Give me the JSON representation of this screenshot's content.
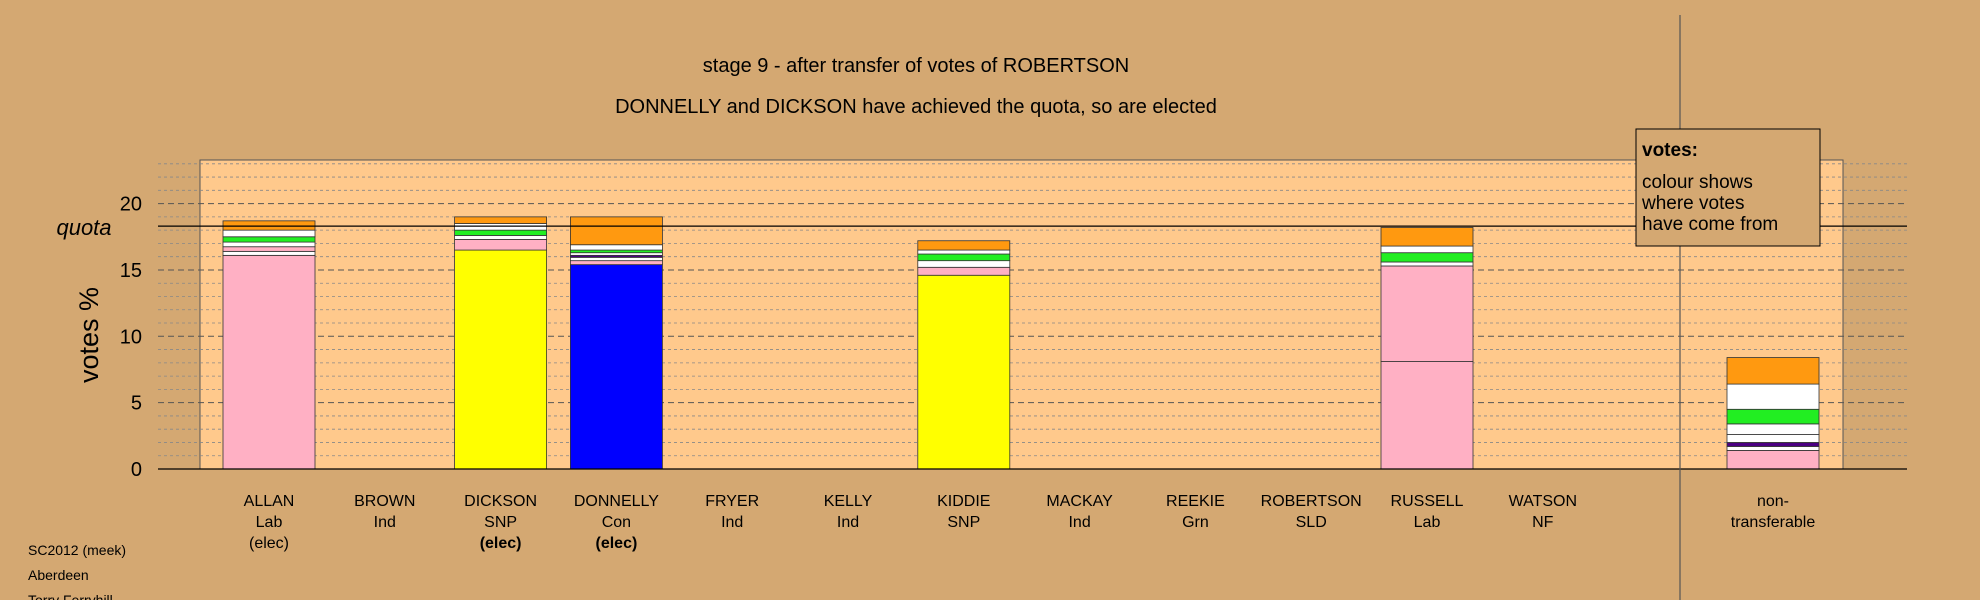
{
  "chart_data": {
    "type": "bar",
    "stacked": true,
    "title": "stage 9 - after transfer of votes of ROBERTSON",
    "subtitle": "DONNELLY and DICKSON have achieved the quota, so are elected",
    "ylabel": "votes %",
    "ylim": [
      0,
      23.5
    ],
    "yticks": [
      0,
      5,
      10,
      15,
      20
    ],
    "quota": 18.3,
    "quota_label": "quota",
    "grid": "dashed",
    "legend": {
      "title": "votes:",
      "lines": [
        "colour shows",
        "where votes",
        "have come from"
      ],
      "position": "top-right"
    },
    "colors": {
      "lab": "#ffb0c4",
      "snp": "#ffff00",
      "con": "#0000ff",
      "orange": "#ff9910",
      "green": "#22ee22",
      "white": "#ffffff",
      "purple": "#4b0082",
      "plot_bg": "#ffc98c",
      "page_bg": "#d4a872"
    },
    "candidates": [
      {
        "name": "ALLAN",
        "party": "Lab",
        "status": "(elec)",
        "bold": false,
        "segments": [
          {
            "c": "lab",
            "v": 16.1
          },
          {
            "c": "white",
            "v": 0.3
          },
          {
            "c": "lab",
            "v": 0.35
          },
          {
            "c": "white",
            "v": 0.35
          },
          {
            "c": "green",
            "v": 0.4
          },
          {
            "c": "white",
            "v": 0.5
          },
          {
            "c": "orange",
            "v": 0.7
          }
        ]
      },
      {
        "name": "BROWN",
        "party": "Ind",
        "status": "",
        "bold": false,
        "segments": []
      },
      {
        "name": "DICKSON",
        "party": "SNP",
        "status": "(elec)",
        "bold": true,
        "segments": [
          {
            "c": "snp",
            "v": 16.5
          },
          {
            "c": "lab",
            "v": 0.8
          },
          {
            "c": "white",
            "v": 0.3
          },
          {
            "c": "green",
            "v": 0.4
          },
          {
            "c": "white",
            "v": 0.5
          },
          {
            "c": "orange",
            "v": 0.5
          }
        ]
      },
      {
        "name": "DONNELLY",
        "party": "Con",
        "status": "(elec)",
        "bold": true,
        "segments": [
          {
            "c": "con",
            "v": 15.4
          },
          {
            "c": "lab",
            "v": 0.3
          },
          {
            "c": "white",
            "v": 0.25
          },
          {
            "c": "purple",
            "v": 0.15
          },
          {
            "c": "white",
            "v": 0.2
          },
          {
            "c": "green",
            "v": 0.2
          },
          {
            "c": "white",
            "v": 0.4
          },
          {
            "c": "orange",
            "v": 2.1
          }
        ]
      },
      {
        "name": "FRYER",
        "party": "Ind",
        "status": "",
        "bold": false,
        "segments": []
      },
      {
        "name": "KELLY",
        "party": "Ind",
        "status": "",
        "bold": false,
        "segments": []
      },
      {
        "name": "KIDDIE",
        "party": "SNP",
        "status": "",
        "bold": false,
        "segments": [
          {
            "c": "snp",
            "v": 14.6
          },
          {
            "c": "lab",
            "v": 0.6
          },
          {
            "c": "white",
            "v": 0.5
          },
          {
            "c": "green",
            "v": 0.5
          },
          {
            "c": "white",
            "v": 0.3
          },
          {
            "c": "orange",
            "v": 0.7
          }
        ]
      },
      {
        "name": "MACKAY",
        "party": "Ind",
        "status": "",
        "bold": false,
        "segments": []
      },
      {
        "name": "REEKIE",
        "party": "Grn",
        "status": "",
        "bold": false,
        "segments": []
      },
      {
        "name": "ROBERTSON",
        "party": "SLD",
        "status": "",
        "bold": false,
        "segments": []
      },
      {
        "name": "RUSSELL",
        "party": "Lab",
        "status": "",
        "bold": false,
        "segments": [
          {
            "c": "lab",
            "v": 8.1
          },
          {
            "c": "lab",
            "v": 7.2
          },
          {
            "c": "white",
            "v": 0.3
          },
          {
            "c": "green",
            "v": 0.7
          },
          {
            "c": "white",
            "v": 0.5
          },
          {
            "c": "orange",
            "v": 1.4
          }
        ]
      },
      {
        "name": "WATSON",
        "party": "NF",
        "status": "",
        "bold": false,
        "segments": []
      }
    ],
    "nontransferable": {
      "label_lines": [
        "non-",
        "transferable"
      ],
      "segments": [
        {
          "c": "lab",
          "v": 1.4
        },
        {
          "c": "white",
          "v": 0.3
        },
        {
          "c": "purple",
          "v": 0.3
        },
        {
          "c": "white",
          "v": 0.6
        },
        {
          "c": "white",
          "v": 0.8
        },
        {
          "c": "green",
          "v": 1.1
        },
        {
          "c": "white",
          "v": 1.9
        },
        {
          "c": "orange",
          "v": 2.0
        }
      ]
    }
  },
  "footer": {
    "lines": [
      "SC2012 (meek)",
      "Aberdeen",
      "Torry Ferryhill"
    ]
  }
}
